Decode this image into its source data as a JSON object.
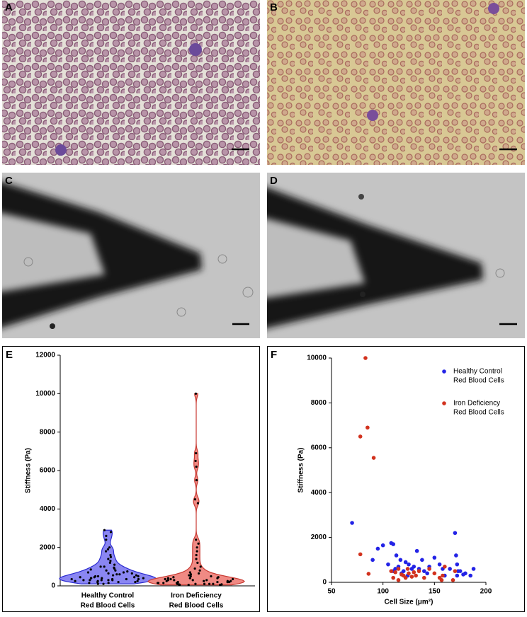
{
  "image_panels": [
    {
      "label": "A"
    },
    {
      "label": "B"
    },
    {
      "label": "C"
    },
    {
      "label": "D"
    }
  ],
  "chart_data": [
    {
      "type": "violin",
      "label": "E",
      "ylabel": "Stiffness (Pa)",
      "categories": [
        [
          "Healthy Control",
          "Red Blood Cells"
        ],
        [
          "Iron Deficiency",
          "Red Blood Cells"
        ]
      ],
      "groups": [
        {
          "color": "#8a86f2",
          "edge_color": "#2a2ad0",
          "values": [
            2900,
            2800,
            2600,
            2400,
            2000,
            1900,
            1800,
            1600,
            1500,
            1400,
            1300,
            1200,
            1100,
            1000,
            1000,
            950,
            900,
            850,
            800,
            800,
            750,
            700,
            700,
            650,
            650,
            600,
            600,
            550,
            550,
            500,
            500,
            500,
            450,
            450,
            450,
            400,
            400,
            400,
            400,
            350,
            350,
            350,
            350,
            300,
            300,
            300,
            300,
            300,
            250,
            250,
            250,
            200,
            200,
            200,
            150,
            150,
            100,
            100
          ]
        },
        {
          "color": "#f08a84",
          "edge_color": "#c83a32",
          "values": [
            10000,
            6900,
            6500,
            6200,
            5500,
            4500,
            4300,
            2400,
            2200,
            2000,
            1800,
            1600,
            1400,
            1200,
            1000,
            900,
            800,
            700,
            650,
            600,
            550,
            500,
            500,
            450,
            450,
            400,
            400,
            400,
            350,
            350,
            350,
            300,
            300,
            300,
            300,
            250,
            250,
            250,
            250,
            200,
            200,
            200,
            200,
            200,
            150,
            150,
            150,
            150,
            100,
            100,
            100,
            100,
            100,
            80,
            80,
            60,
            50,
            50
          ]
        }
      ],
      "ylim": [
        0,
        12000
      ],
      "yticks": [
        0,
        2000,
        4000,
        6000,
        8000,
        10000,
        12000
      ]
    },
    {
      "type": "scatter",
      "label": "F",
      "xlabel": "Cell Size (μm²)",
      "ylabel": "Stiffness (Pa)",
      "xlim": [
        50,
        200
      ],
      "xticks": [
        50,
        100,
        150,
        200
      ],
      "ylim": [
        0,
        10000
      ],
      "yticks": [
        0,
        2000,
        4000,
        6000,
        8000,
        10000
      ],
      "legend": "upper right",
      "series": [
        {
          "name": [
            "Healthy Control",
            "Red Blood Cells"
          ],
          "color": "#2323e6",
          "x": [
            70,
            100,
            108,
            110,
            113,
            115,
            112,
            117,
            120,
            122,
            125,
            128,
            130,
            133,
            135,
            140,
            143,
            145,
            150,
            155,
            158,
            160,
            170,
            171,
            172,
            173,
            172,
            175,
            178,
            180,
            185,
            188,
            90,
            105,
            95,
            110,
            118,
            124,
            138,
            165
          ],
          "values": [
            2650,
            1650,
            1750,
            1700,
            1200,
            700,
            600,
            1000,
            500,
            900,
            800,
            600,
            700,
            1400,
            600,
            500,
            400,
            700,
            1100,
            800,
            600,
            300,
            2200,
            1200,
            800,
            500,
            300,
            500,
            350,
            400,
            300,
            600,
            1000,
            800,
            1500,
            500,
            400,
            300,
            1000,
            600
          ]
        },
        {
          "name": [
            "Iron Deficiency",
            "Red Blood Cells"
          ],
          "color": "#d2321e",
          "x": [
            83,
            85,
            78,
            91,
            78,
            86,
            108,
            112,
            115,
            118,
            120,
            122,
            124,
            125,
            128,
            130,
            132,
            135,
            140,
            145,
            150,
            155,
            157,
            158,
            160,
            168,
            170,
            110,
            115
          ],
          "values": [
            10000,
            6900,
            6500,
            5550,
            1250,
            380,
            500,
            450,
            600,
            350,
            300,
            200,
            600,
            400,
            250,
            450,
            300,
            500,
            200,
            600,
            400,
            200,
            100,
            300,
            700,
            100,
            500,
            200,
            100
          ]
        }
      ]
    }
  ]
}
